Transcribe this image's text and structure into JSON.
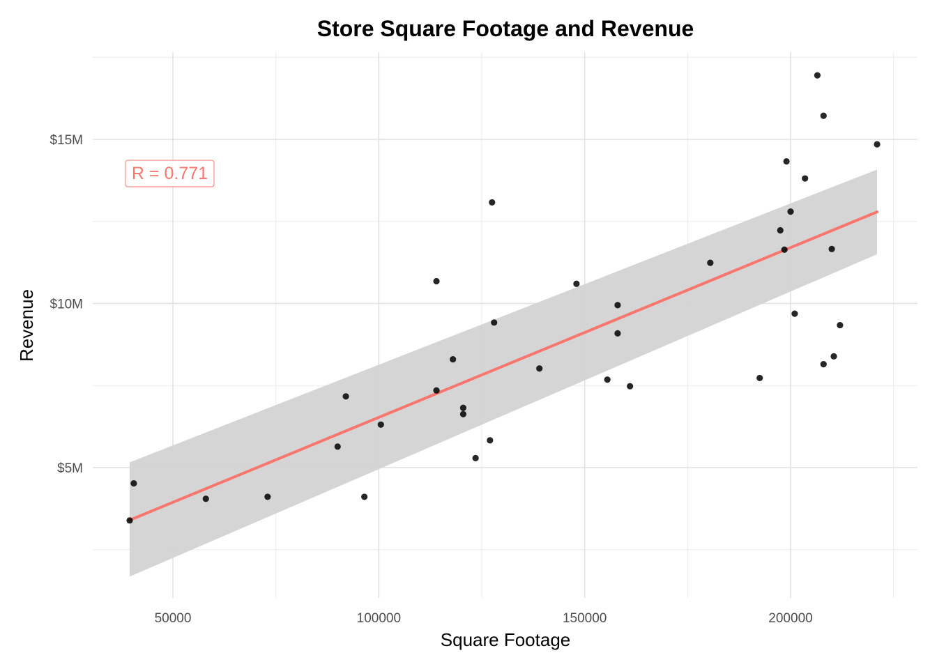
{
  "chart_data": {
    "type": "scatter",
    "title": "Store Square Footage and Revenue",
    "xlabel": "Square Footage",
    "ylabel": "Revenue",
    "xlim": [
      30000,
      230000
    ],
    "ylim": [
      1800000,
      17800000
    ],
    "x_ticks": [
      50000,
      100000,
      150000,
      200000
    ],
    "x_tick_labels": [
      "50000",
      "100000",
      "150000",
      "200000"
    ],
    "y_ticks": [
      5000000,
      10000000,
      15000000
    ],
    "y_tick_labels": [
      "$5M",
      "$10M",
      "$15M"
    ],
    "grid": true,
    "legend": "none",
    "annotation": {
      "text": "R = 0.771",
      "x": 40000,
      "y": 13980000,
      "color": "#F8766D"
    },
    "trend": {
      "x": [
        39500,
        221000
      ],
      "y": [
        3400000,
        12790000
      ],
      "ci_lower": [
        1680000,
        11500000
      ],
      "ci_upper": [
        5160000,
        14080000
      ],
      "line_color": "#F8766D",
      "band_color": "#D3D3D3"
    },
    "points": {
      "color": "#000000",
      "x": [
        39500,
        40500,
        58000,
        73000,
        90000,
        92000,
        96500,
        100500,
        114000,
        114000,
        118000,
        120500,
        120500,
        123500,
        127000,
        127500,
        128000,
        139000,
        148000,
        155500,
        158000,
        158000,
        161000,
        180500,
        192500,
        197500,
        198500,
        199000,
        200000,
        201000,
        203500,
        206500,
        208000,
        208000,
        210000,
        210500,
        212000,
        221000
      ],
      "y": [
        3390000,
        4520000,
        4050000,
        4110000,
        5640000,
        7170000,
        4110000,
        6310000,
        10680000,
        7350000,
        8300000,
        6820000,
        6630000,
        5290000,
        5830000,
        13080000,
        9420000,
        8020000,
        10600000,
        7680000,
        9950000,
        9090000,
        7480000,
        11240000,
        7730000,
        12230000,
        11640000,
        14330000,
        12800000,
        9690000,
        13810000,
        16950000,
        15720000,
        8150000,
        11660000,
        8390000,
        9340000,
        14850000
      ]
    }
  }
}
